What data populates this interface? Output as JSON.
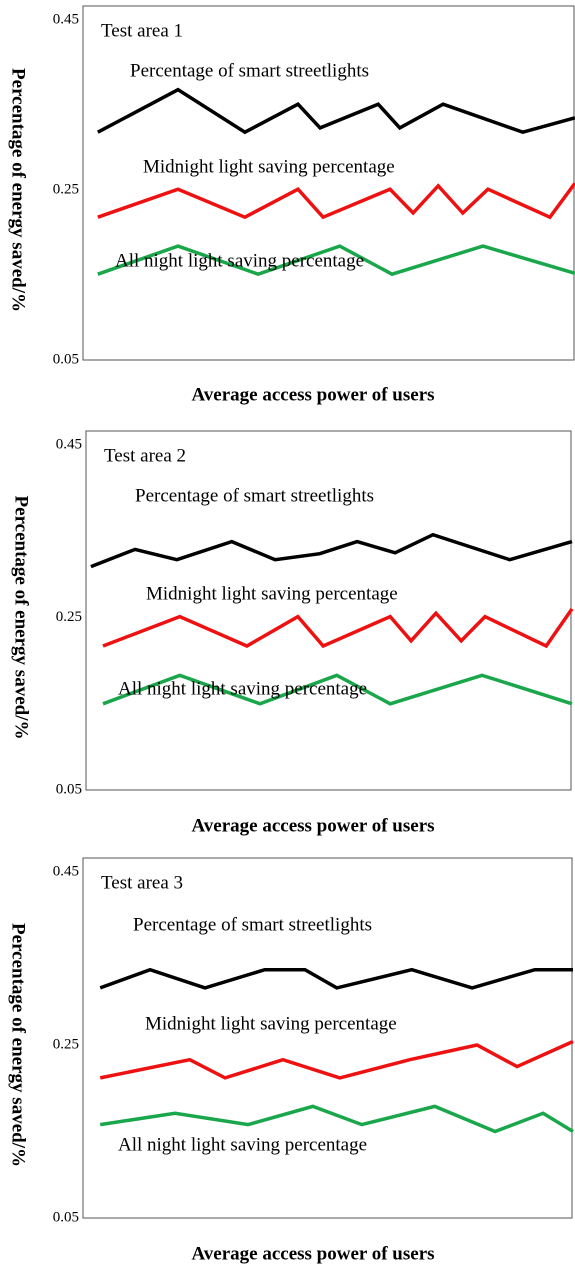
{
  "chart_data": [
    {
      "type": "line",
      "title": "Test area 1",
      "xlabel": "Average access power of users",
      "ylabel": "Percentage of energy saved/%",
      "xlim": [
        0,
        100
      ],
      "ylim": [
        0.05,
        0.45
      ],
      "yticks": [
        0.05,
        0.25,
        0.45
      ],
      "series": [
        {
          "name": "Percentage of smart streetlights",
          "color": "#000000",
          "x": [
            3,
            19.3,
            32.9,
            43.7,
            48.2,
            60,
            64.4,
            73.2,
            89.4,
            100
          ],
          "values": [
            0.318,
            0.368,
            0.318,
            0.351,
            0.323,
            0.351,
            0.323,
            0.351,
            0.318,
            0.335
          ]
        },
        {
          "name": "Midnight light saving percentage",
          "color": "#ee1111",
          "x": [
            3,
            19.3,
            32.9,
            43.7,
            48.8,
            62.4,
            67.1,
            72.2,
            77.2,
            82.3,
            94.9,
            100
          ],
          "values": [
            0.218,
            0.251,
            0.218,
            0.251,
            0.218,
            0.251,
            0.223,
            0.255,
            0.223,
            0.251,
            0.218,
            0.258
          ]
        },
        {
          "name": "All night light saving percentage",
          "color": "#1aa64a",
          "x": [
            3,
            19.3,
            35.6,
            52.2,
            62.8,
            81.3,
            100
          ],
          "values": [
            0.151,
            0.184,
            0.151,
            0.184,
            0.151,
            0.184,
            0.152
          ]
        }
      ]
    },
    {
      "type": "line",
      "title": "Test area 2",
      "xlabel": "Average access power of users",
      "ylabel": "Percentage of energy saved/%",
      "xlim": [
        0,
        100
      ],
      "ylim": [
        0.05,
        0.45
      ],
      "yticks": [
        0.05,
        0.25,
        0.45
      ],
      "series": [
        {
          "name": "Percentage of smart streetlights",
          "color": "#000000",
          "x": [
            1,
            10.1,
            18.7,
            30,
            38.9,
            48.1,
            55.8,
            63.6,
            71.4,
            87.2,
            100
          ],
          "values": [
            0.309,
            0.329,
            0.317,
            0.338,
            0.317,
            0.324,
            0.338,
            0.325,
            0.346,
            0.317,
            0.338
          ]
        },
        {
          "name": "Midnight light saving percentage",
          "color": "#ee1111",
          "x": [
            3.5,
            19.3,
            33.1,
            43.6,
            48.8,
            62.6,
            66.9,
            72,
            77.2,
            82.1,
            94.7,
            100
          ],
          "values": [
            0.217,
            0.251,
            0.217,
            0.251,
            0.217,
            0.251,
            0.223,
            0.255,
            0.223,
            0.251,
            0.217,
            0.26
          ]
        },
        {
          "name": "All night light saving percentage",
          "color": "#1aa64a",
          "x": [
            3.5,
            19.3,
            35.8,
            51.6,
            62.6,
            81.5,
            100
          ],
          "values": [
            0.15,
            0.183,
            0.15,
            0.183,
            0.15,
            0.183,
            0.15
          ]
        }
      ]
    },
    {
      "type": "line",
      "title": "Test area 3",
      "xlabel": "Average access power of users",
      "ylabel": "Percentage of energy saved/%",
      "xlim": [
        0,
        100
      ],
      "ylim": [
        0.05,
        0.45
      ],
      "yticks": [
        0.05,
        0.25,
        0.45
      ],
      "series": [
        {
          "name": "Percentage of smart streetlights",
          "color": "#000000",
          "x": [
            3.5,
            13.7,
            24.9,
            37.1,
            45.3,
            51.8,
            67.1,
            79.4,
            92.2,
            100
          ],
          "values": [
            0.316,
            0.337,
            0.316,
            0.337,
            0.337,
            0.316,
            0.337,
            0.316,
            0.337,
            0.337
          ]
        },
        {
          "name": "Midnight light saving percentage",
          "color": "#ee1111",
          "x": [
            3.5,
            21.8,
            29,
            40.8,
            52.4,
            66.7,
            80.4,
            88.6,
            100
          ],
          "values": [
            0.212,
            0.233,
            0.212,
            0.233,
            0.212,
            0.233,
            0.25,
            0.225,
            0.254
          ]
        },
        {
          "name": "All night light saving percentage",
          "color": "#1aa64a",
          "x": [
            3.5,
            18.8,
            33.7,
            46.9,
            56.9,
            71.8,
            84.1,
            93.9,
            100
          ],
          "values": [
            0.158,
            0.171,
            0.158,
            0.179,
            0.158,
            0.179,
            0.15,
            0.171,
            0.15
          ]
        }
      ]
    }
  ]
}
